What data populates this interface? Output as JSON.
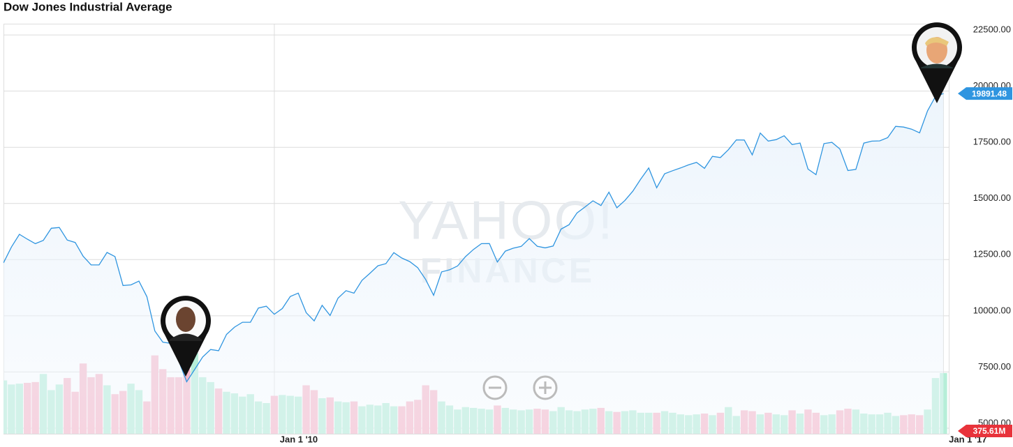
{
  "chart_data": {
    "type": "line",
    "title": "Dow Jones Industrial Average",
    "watermark": "YAHOO!",
    "watermark_sub": "FINANCE",
    "categories": [
      null,
      null,
      null,
      null,
      null,
      null,
      null,
      null,
      null,
      null,
      null,
      null,
      null,
      null,
      null,
      null,
      null,
      null,
      null,
      null,
      null,
      null,
      null,
      null,
      null,
      null,
      null,
      null,
      null,
      null,
      null,
      null,
      null,
      null,
      "Jan 1 '10",
      null,
      null,
      null,
      null,
      null,
      null,
      null,
      null,
      null,
      null,
      null,
      null,
      null,
      null,
      null,
      null,
      null,
      null,
      null,
      null,
      null,
      null,
      null,
      null,
      null,
      null,
      null,
      null,
      null,
      null,
      null,
      null,
      null,
      null,
      null,
      null,
      null,
      null,
      null,
      null,
      null,
      null,
      null,
      null,
      null,
      null,
      null,
      null,
      null,
      null,
      null,
      null,
      null,
      null,
      null,
      null,
      null,
      null,
      null,
      null,
      null,
      null,
      null,
      null,
      null,
      null,
      null,
      null,
      null,
      null,
      null,
      null,
      null,
      null,
      null,
      null,
      null,
      null,
      null,
      null,
      null,
      null,
      null,
      "Jan 1 '17"
    ],
    "values": [
      12354,
      13063,
      13628,
      13409,
      13212,
      13358,
      13896,
      13930,
      13372,
      13265,
      12650,
      12266,
      12263,
      12820,
      12638,
      11350,
      11378,
      11544,
      10851,
      9325,
      8829,
      8776,
      8001,
      7063,
      7609,
      8168,
      8500,
      8447,
      9172,
      9496,
      9712,
      9713,
      10345,
      10428,
      10067,
      10325,
      10857,
      11009,
      10137,
      9774,
      10466,
      10015,
      10788,
      11118,
      11006,
      11578,
      11892,
      12226,
      12320,
      12811,
      12570,
      12414,
      12143,
      11614,
      10913,
      11955,
      12046,
      12218,
      12633,
      12952,
      13212,
      13214,
      12393,
      12880,
      13009,
      13091,
      13437,
      13096,
      13026,
      13104,
      13861,
      14054,
      14579,
      14840,
      15116,
      14910,
      15500,
      14810,
      15130,
      15546,
      16086,
      16577,
      15699,
      16322,
      16458,
      16581,
      16717,
      16827,
      16563,
      17098,
      17043,
      17391,
      17828,
      17823,
      17165,
      18133,
      17776,
      17841,
      18011,
      17620,
      17690,
      16528,
      16285,
      17664,
      17720,
      17425,
      16466,
      16517,
      17685,
      17774,
      17787,
      17930,
      18432,
      18401,
      18308,
      18142,
      19124,
      19763,
      19891.48
    ],
    "color": "#2f95e0",
    "ylim": [
      4750,
      23000
    ],
    "yticks": [
      {
        "value": 5000,
        "label": "5000.00"
      },
      {
        "value": 7500,
        "label": "7500.00"
      },
      {
        "value": 10000,
        "label": "10000.00"
      },
      {
        "value": 12500,
        "label": "12500.00"
      },
      {
        "value": 15000,
        "label": "15000.00"
      },
      {
        "value": 17500,
        "label": "17500.00"
      },
      {
        "value": 20000,
        "label": "20000.00"
      },
      {
        "value": 22500,
        "label": "22500.00"
      }
    ],
    "grid": true,
    "volume": {
      "values": [
        330,
        305,
        310,
        315,
        320,
        370,
        270,
        305,
        345,
        260,
        435,
        350,
        370,
        300,
        245,
        265,
        310,
        270,
        200,
        485,
        400,
        350,
        350,
        400,
        500,
        350,
        320,
        280,
        260,
        250,
        230,
        245,
        200,
        190,
        235,
        240,
        235,
        230,
        300,
        270,
        220,
        225,
        200,
        195,
        200,
        170,
        180,
        175,
        190,
        170,
        170,
        200,
        210,
        300,
        270,
        200,
        175,
        150,
        165,
        160,
        155,
        150,
        175,
        160,
        150,
        145,
        150,
        155,
        150,
        140,
        165,
        145,
        140,
        150,
        155,
        160,
        140,
        135,
        140,
        145,
        130,
        130,
        130,
        140,
        130,
        120,
        115,
        120,
        125,
        115,
        130,
        165,
        110,
        145,
        140,
        120,
        130,
        120,
        115,
        145,
        125,
        150,
        130,
        115,
        120,
        145,
        155,
        150,
        125,
        120,
        120,
        130,
        110,
        115,
        120,
        115,
        150,
        345,
        375.61
      ],
      "value_labels": {
        "118": "375.61M"
      },
      "ylim": [
        0,
        600
      ],
      "up_color": "#b6eed8",
      "down_color": "#f8b7c9",
      "label_color": "#e8333b"
    }
  }
}
